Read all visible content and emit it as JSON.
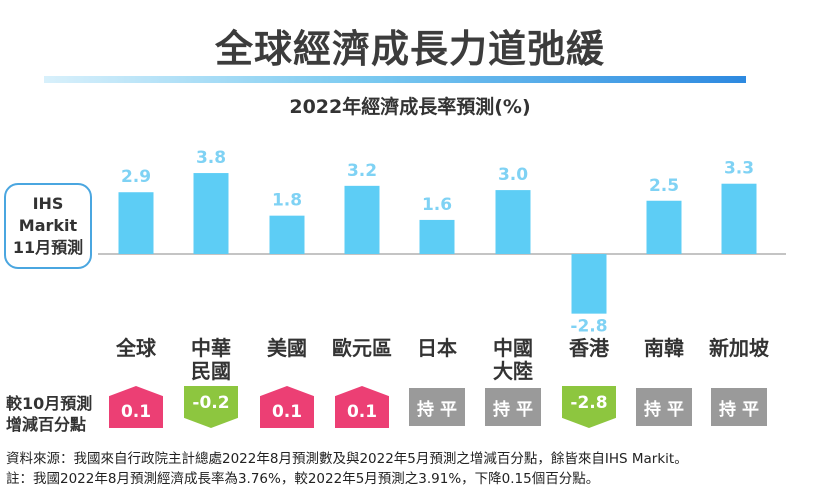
{
  "header": {
    "title": "全球經濟成長力道弛緩",
    "subtitle": "2022年經濟成長率預測(%)"
  },
  "source_box": {
    "line1": "IHS",
    "line2": "Markit",
    "line3": "11月預測"
  },
  "chart_data": {
    "type": "bar",
    "title": "2022年經濟成長率預測(%)",
    "categories": [
      "全球",
      "中華民國",
      "美國",
      "歐元區",
      "日本",
      "中國大陸",
      "香港",
      "南韓",
      "新加坡"
    ],
    "category_lines": [
      [
        "全球"
      ],
      [
        "中華",
        "民國"
      ],
      [
        "美國"
      ],
      [
        "歐元區"
      ],
      [
        "日本"
      ],
      [
        "中國",
        "大陸"
      ],
      [
        "香港"
      ],
      [
        "南韓"
      ],
      [
        "新加坡"
      ]
    ],
    "values": [
      2.9,
      3.8,
      1.8,
      3.2,
      1.6,
      3.0,
      -2.8,
      2.5,
      3.3
    ],
    "value_labels": [
      "2.9",
      "3.8",
      "1.8",
      "3.2",
      "1.6",
      "3.0",
      "-2.8",
      "2.5",
      "3.3"
    ],
    "bar_color": "#5dcdf5",
    "label_color": "#7fd2f4",
    "axis_color": "#b0b0b0"
  },
  "change_row": {
    "label_line1": "較10月預測",
    "label_line2": "增減百分點",
    "items": [
      {
        "text": "0.1",
        "dir": "up"
      },
      {
        "text": "-0.2",
        "dir": "down"
      },
      {
        "text": "0.1",
        "dir": "up"
      },
      {
        "text": "0.1",
        "dir": "up"
      },
      {
        "text": "持 平",
        "dir": "flat"
      },
      {
        "text": "持 平",
        "dir": "flat"
      },
      {
        "text": "-2.8",
        "dir": "down"
      },
      {
        "text": "持 平",
        "dir": "flat"
      },
      {
        "text": "持 平",
        "dir": "flat"
      }
    ],
    "colors": {
      "up": "#ec3f74",
      "down": "#8dc63f",
      "flat": "#9a9a9a"
    }
  },
  "notes": {
    "line1": "資料來源：我國來自行政院主計總處2022年8月預測數及與2022年5月預測之增減百分點，餘皆來自IHS Markit。",
    "line2": "註：我國2022年8月預測經濟成長率為3.76%，較2022年5月預測之3.91%，下降0.15個百分點。"
  }
}
